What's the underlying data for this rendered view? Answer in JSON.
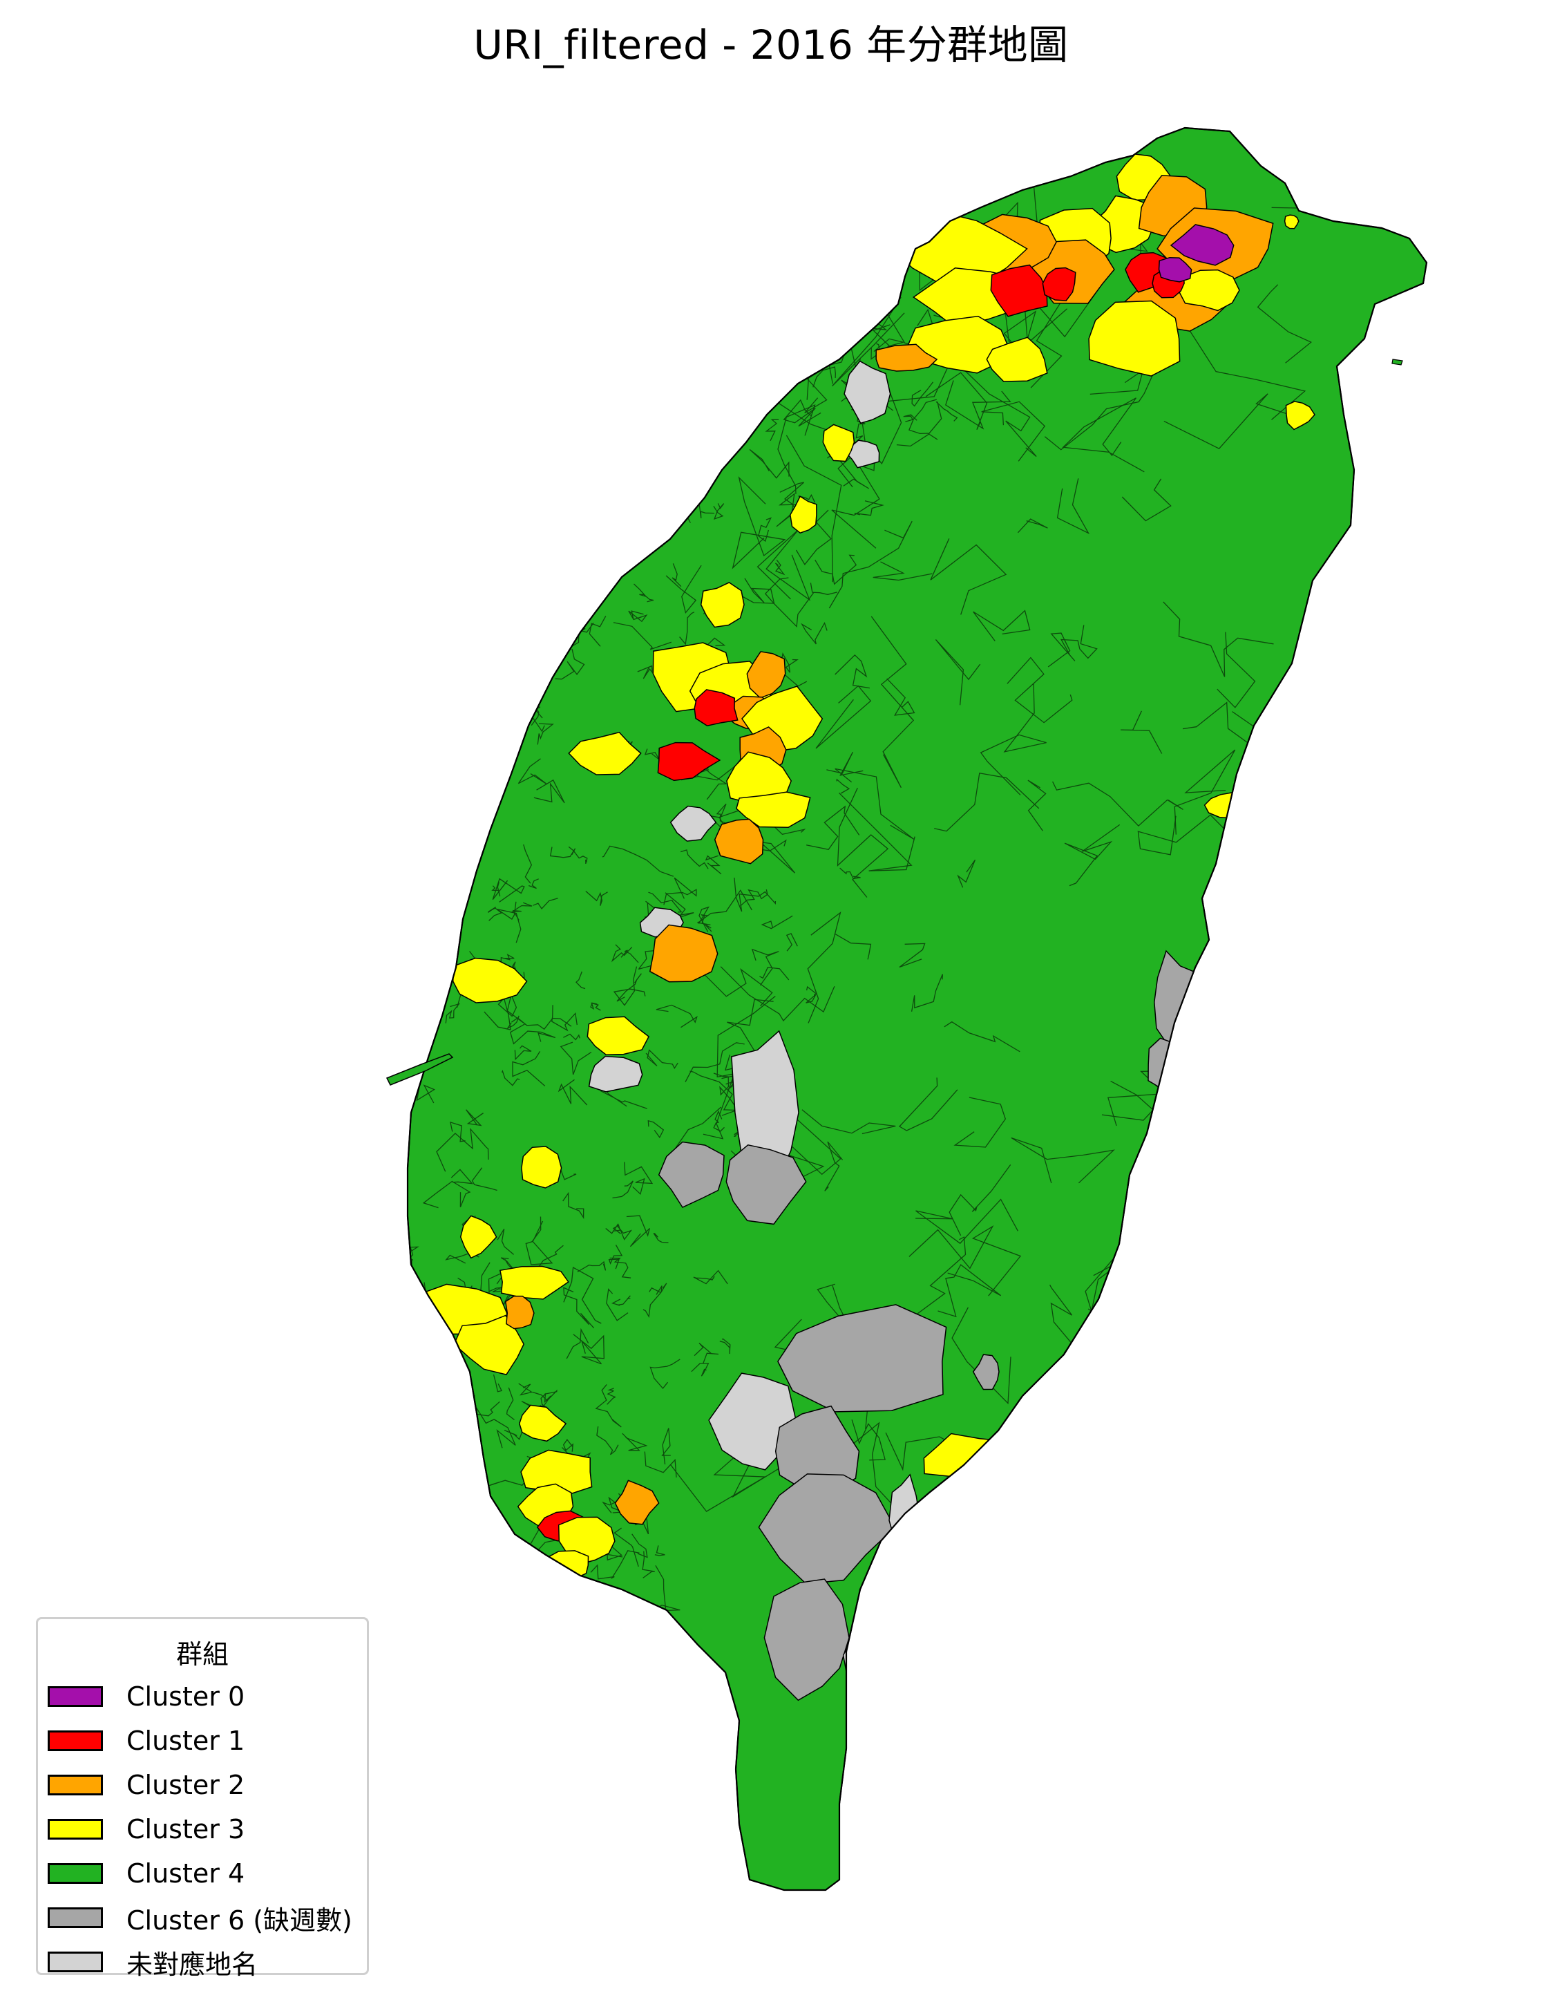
{
  "title": "URI_filtered - 2016 年分群地圖",
  "legend": {
    "title": "群組",
    "items": [
      {
        "label": "Cluster 0",
        "color": "#a40fab"
      },
      {
        "label": "Cluster 1",
        "color": "#ff0000"
      },
      {
        "label": "Cluster 2",
        "color": "#ffa500"
      },
      {
        "label": "Cluster 3",
        "color": "#ffff00"
      },
      {
        "label": "Cluster 4",
        "color": "#22b222"
      },
      {
        "label": "Cluster 6 (缺週數)",
        "color": "#a6a6a6"
      },
      {
        "label": "未對應地名",
        "color": "#d3d3d3"
      }
    ]
  },
  "colors": {
    "cluster0": "#a40fab",
    "cluster1": "#ff0000",
    "cluster2": "#ffa500",
    "cluster3": "#ffff00",
    "cluster4": "#22b222",
    "cluster6": "#a6a6a6",
    "unmatched": "#d3d3d3",
    "boundary": "#000000"
  }
}
